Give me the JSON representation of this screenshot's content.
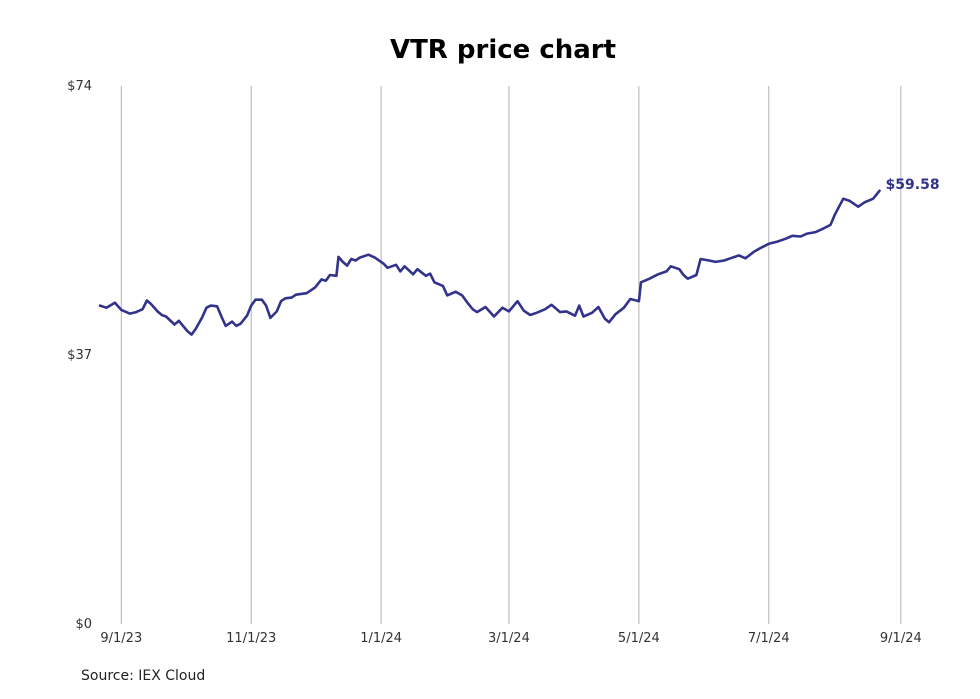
{
  "chart_data": {
    "type": "line",
    "title": "VTR price chart",
    "xlabel": "",
    "ylabel": "",
    "ylim": [
      0,
      74
    ],
    "y_ticks": [
      {
        "value": 0,
        "label": "$0"
      },
      {
        "value": 37,
        "label": "$37"
      },
      {
        "value": 74,
        "label": "$74"
      }
    ],
    "x_ticks": [
      {
        "date": "2023-09-01",
        "label": "9/1/23"
      },
      {
        "date": "2023-11-01",
        "label": "11/1/23"
      },
      {
        "date": "2024-01-01",
        "label": "1/1/24"
      },
      {
        "date": "2024-03-01",
        "label": "3/1/24"
      },
      {
        "date": "2024-05-01",
        "label": "5/1/24"
      },
      {
        "date": "2024-07-01",
        "label": "7/1/24"
      },
      {
        "date": "2024-09-01",
        "label": "9/1/24"
      }
    ],
    "xlim": [
      "2023-08-22",
      "2024-09-10"
    ],
    "grid": {
      "vertical": true,
      "horizontal": false
    },
    "line_color": "#33338c",
    "series": [
      {
        "last_label": "$59.58",
        "points": [
          [
            "2023-08-22",
            43.8
          ],
          [
            "2023-08-25",
            43.5
          ],
          [
            "2023-08-29",
            44.2
          ],
          [
            "2023-09-01",
            43.2
          ],
          [
            "2023-09-05",
            42.7
          ],
          [
            "2023-09-08",
            42.9
          ],
          [
            "2023-09-11",
            43.3
          ],
          [
            "2023-09-13",
            44.5
          ],
          [
            "2023-09-15",
            44.0
          ],
          [
            "2023-09-18",
            43.0
          ],
          [
            "2023-09-20",
            42.5
          ],
          [
            "2023-09-22",
            42.3
          ],
          [
            "2023-09-26",
            41.2
          ],
          [
            "2023-09-28",
            41.7
          ],
          [
            "2023-10-02",
            40.3
          ],
          [
            "2023-10-04",
            39.8
          ],
          [
            "2023-10-06",
            40.6
          ],
          [
            "2023-10-09",
            42.2
          ],
          [
            "2023-10-11",
            43.5
          ],
          [
            "2023-10-13",
            43.8
          ],
          [
            "2023-10-16",
            43.7
          ],
          [
            "2023-10-18",
            42.3
          ],
          [
            "2023-10-20",
            41.0
          ],
          [
            "2023-10-23",
            41.6
          ],
          [
            "2023-10-25",
            41.0
          ],
          [
            "2023-10-27",
            41.3
          ],
          [
            "2023-10-30",
            42.4
          ],
          [
            "2023-11-01",
            43.8
          ],
          [
            "2023-11-03",
            44.6
          ],
          [
            "2023-11-06",
            44.6
          ],
          [
            "2023-11-08",
            43.8
          ],
          [
            "2023-11-10",
            42.1
          ],
          [
            "2023-11-13",
            43.0
          ],
          [
            "2023-11-15",
            44.4
          ],
          [
            "2023-11-17",
            44.8
          ],
          [
            "2023-11-20",
            44.9
          ],
          [
            "2023-11-22",
            45.3
          ],
          [
            "2023-11-27",
            45.5
          ],
          [
            "2023-11-29",
            45.9
          ],
          [
            "2023-12-01",
            46.3
          ],
          [
            "2023-12-04",
            47.4
          ],
          [
            "2023-12-06",
            47.2
          ],
          [
            "2023-12-08",
            48.0
          ],
          [
            "2023-12-11",
            47.9
          ],
          [
            "2023-12-12",
            50.5
          ],
          [
            "2023-12-14",
            49.8
          ],
          [
            "2023-12-16",
            49.3
          ],
          [
            "2023-12-18",
            50.2
          ],
          [
            "2023-12-20",
            50.0
          ],
          [
            "2023-12-22",
            50.4
          ],
          [
            "2023-12-26",
            50.8
          ],
          [
            "2023-12-29",
            50.4
          ],
          [
            "2024-01-02",
            49.6
          ],
          [
            "2024-01-04",
            49.0
          ],
          [
            "2024-01-08",
            49.4
          ],
          [
            "2024-01-10",
            48.5
          ],
          [
            "2024-01-12",
            49.2
          ],
          [
            "2024-01-16",
            48.1
          ],
          [
            "2024-01-18",
            48.8
          ],
          [
            "2024-01-22",
            47.9
          ],
          [
            "2024-01-24",
            48.2
          ],
          [
            "2024-01-26",
            47.0
          ],
          [
            "2024-01-30",
            46.5
          ],
          [
            "2024-02-01",
            45.2
          ],
          [
            "2024-02-05",
            45.7
          ],
          [
            "2024-02-08",
            45.2
          ],
          [
            "2024-02-11",
            44.0
          ],
          [
            "2024-02-13",
            43.3
          ],
          [
            "2024-02-15",
            42.9
          ],
          [
            "2024-02-19",
            43.6
          ],
          [
            "2024-02-23",
            42.3
          ],
          [
            "2024-02-27",
            43.5
          ],
          [
            "2024-03-01",
            43.0
          ],
          [
            "2024-03-05",
            44.4
          ],
          [
            "2024-03-08",
            43.1
          ],
          [
            "2024-03-11",
            42.5
          ],
          [
            "2024-03-14",
            42.8
          ],
          [
            "2024-03-18",
            43.3
          ],
          [
            "2024-03-21",
            43.9
          ],
          [
            "2024-03-25",
            42.9
          ],
          [
            "2024-03-28",
            43.0
          ],
          [
            "2024-04-01",
            42.4
          ],
          [
            "2024-04-03",
            43.8
          ],
          [
            "2024-04-05",
            42.3
          ],
          [
            "2024-04-09",
            42.8
          ],
          [
            "2024-04-12",
            43.6
          ],
          [
            "2024-04-15",
            42.0
          ],
          [
            "2024-04-17",
            41.5
          ],
          [
            "2024-04-20",
            42.6
          ],
          [
            "2024-04-24",
            43.5
          ],
          [
            "2024-04-27",
            44.7
          ],
          [
            "2024-05-01",
            44.4
          ],
          [
            "2024-05-02",
            47.0
          ],
          [
            "2024-05-06",
            47.5
          ],
          [
            "2024-05-10",
            48.1
          ],
          [
            "2024-05-14",
            48.5
          ],
          [
            "2024-05-16",
            49.2
          ],
          [
            "2024-05-20",
            48.8
          ],
          [
            "2024-05-22",
            48.0
          ],
          [
            "2024-05-24",
            47.5
          ],
          [
            "2024-05-28",
            48.0
          ],
          [
            "2024-05-30",
            50.2
          ],
          [
            "2024-06-03",
            50.0
          ],
          [
            "2024-06-06",
            49.8
          ],
          [
            "2024-06-10",
            50.0
          ],
          [
            "2024-06-13",
            50.3
          ],
          [
            "2024-06-17",
            50.7
          ],
          [
            "2024-06-20",
            50.3
          ],
          [
            "2024-06-24",
            51.2
          ],
          [
            "2024-06-27",
            51.7
          ],
          [
            "2024-07-01",
            52.3
          ],
          [
            "2024-07-05",
            52.6
          ],
          [
            "2024-07-09",
            53.0
          ],
          [
            "2024-07-12",
            53.4
          ],
          [
            "2024-07-16",
            53.3
          ],
          [
            "2024-07-19",
            53.7
          ],
          [
            "2024-07-23",
            53.9
          ],
          [
            "2024-07-26",
            54.3
          ],
          [
            "2024-07-30",
            54.9
          ],
          [
            "2024-08-01",
            56.3
          ],
          [
            "2024-08-05",
            58.5
          ],
          [
            "2024-08-08",
            58.2
          ],
          [
            "2024-08-12",
            57.4
          ],
          [
            "2024-08-15",
            58.0
          ],
          [
            "2024-08-19",
            58.5
          ],
          [
            "2024-08-22",
            59.58
          ]
        ]
      }
    ]
  },
  "source": "Source: IEX Cloud"
}
